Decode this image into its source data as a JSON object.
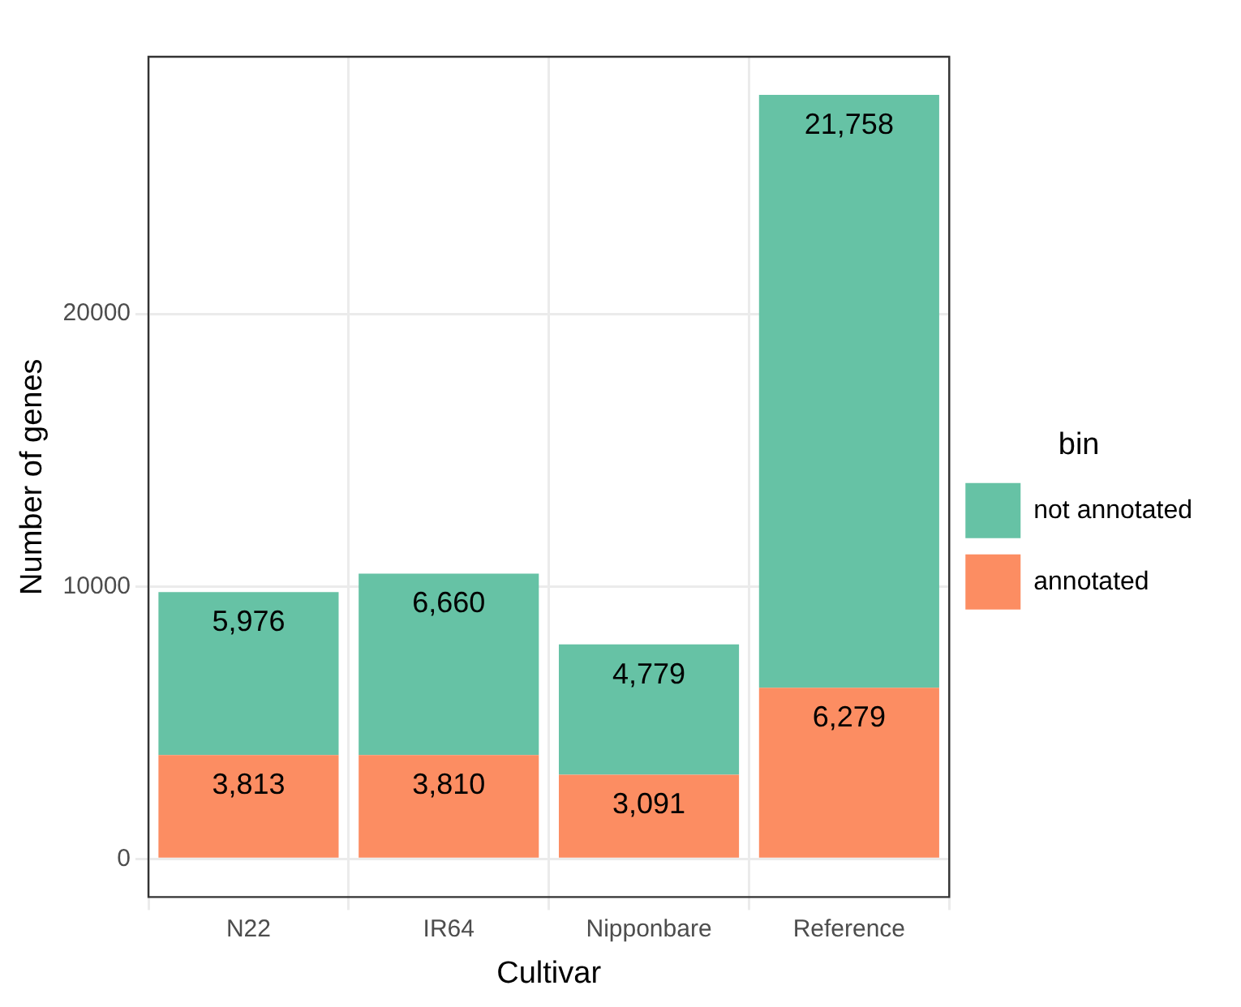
{
  "chart_data": {
    "type": "bar",
    "stacked": true,
    "xlabel": "Cultivar",
    "ylabel": "Number of genes",
    "legend_title": "bin",
    "legend": "right",
    "grid": true,
    "categories": [
      "N22",
      "IR64",
      "Nipponbare",
      "Reference"
    ],
    "series": [
      {
        "name": "annotated",
        "color": "#fc8d62",
        "values": [
          3813,
          3810,
          3091,
          6279
        ],
        "value_labels": [
          "3,813",
          "3,810",
          "3,091",
          "6,279"
        ]
      },
      {
        "name": "not annotated",
        "color": "#66c2a5",
        "values": [
          5976,
          6660,
          4779,
          21758
        ],
        "value_labels": [
          "5,976",
          "6,660",
          "4,779",
          "21,758"
        ]
      }
    ],
    "ylim": [
      -1402,
      29439
    ],
    "yticks": [
      0,
      10000,
      20000
    ]
  }
}
